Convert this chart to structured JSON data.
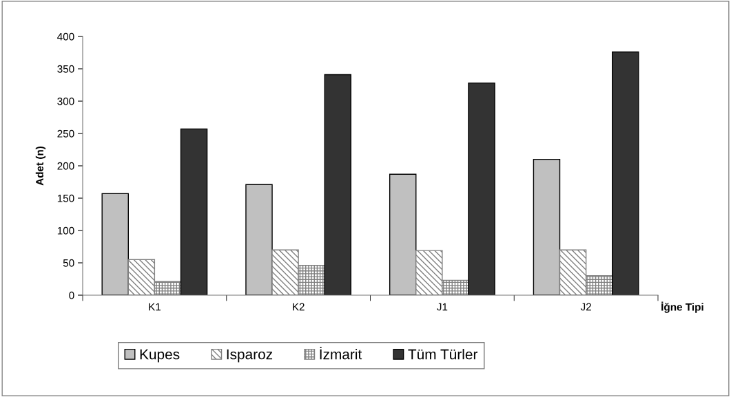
{
  "chart_data": {
    "type": "bar",
    "xlabel": "İğne Tipi",
    "ylabel": "Adet (n)",
    "categories": [
      "K1",
      "K2",
      "J1",
      "J2"
    ],
    "series": [
      {
        "name": "Kupes",
        "color": "#c0c0c0",
        "values": [
          157,
          171,
          187,
          210
        ]
      },
      {
        "name": "Isparoz",
        "color": "#808080",
        "values": [
          55,
          70,
          69,
          70
        ]
      },
      {
        "name": "İzmarit",
        "color": "#808080",
        "values": [
          21,
          46,
          23,
          30
        ]
      },
      {
        "name": "Tüm Türler",
        "color": "#333333",
        "values": [
          257,
          341,
          328,
          376
        ]
      }
    ],
    "ylim": [
      0,
      400
    ],
    "yticks": [
      0,
      50,
      100,
      150,
      200,
      250,
      300,
      350,
      400
    ],
    "grid": false,
    "legend": "bottom"
  }
}
